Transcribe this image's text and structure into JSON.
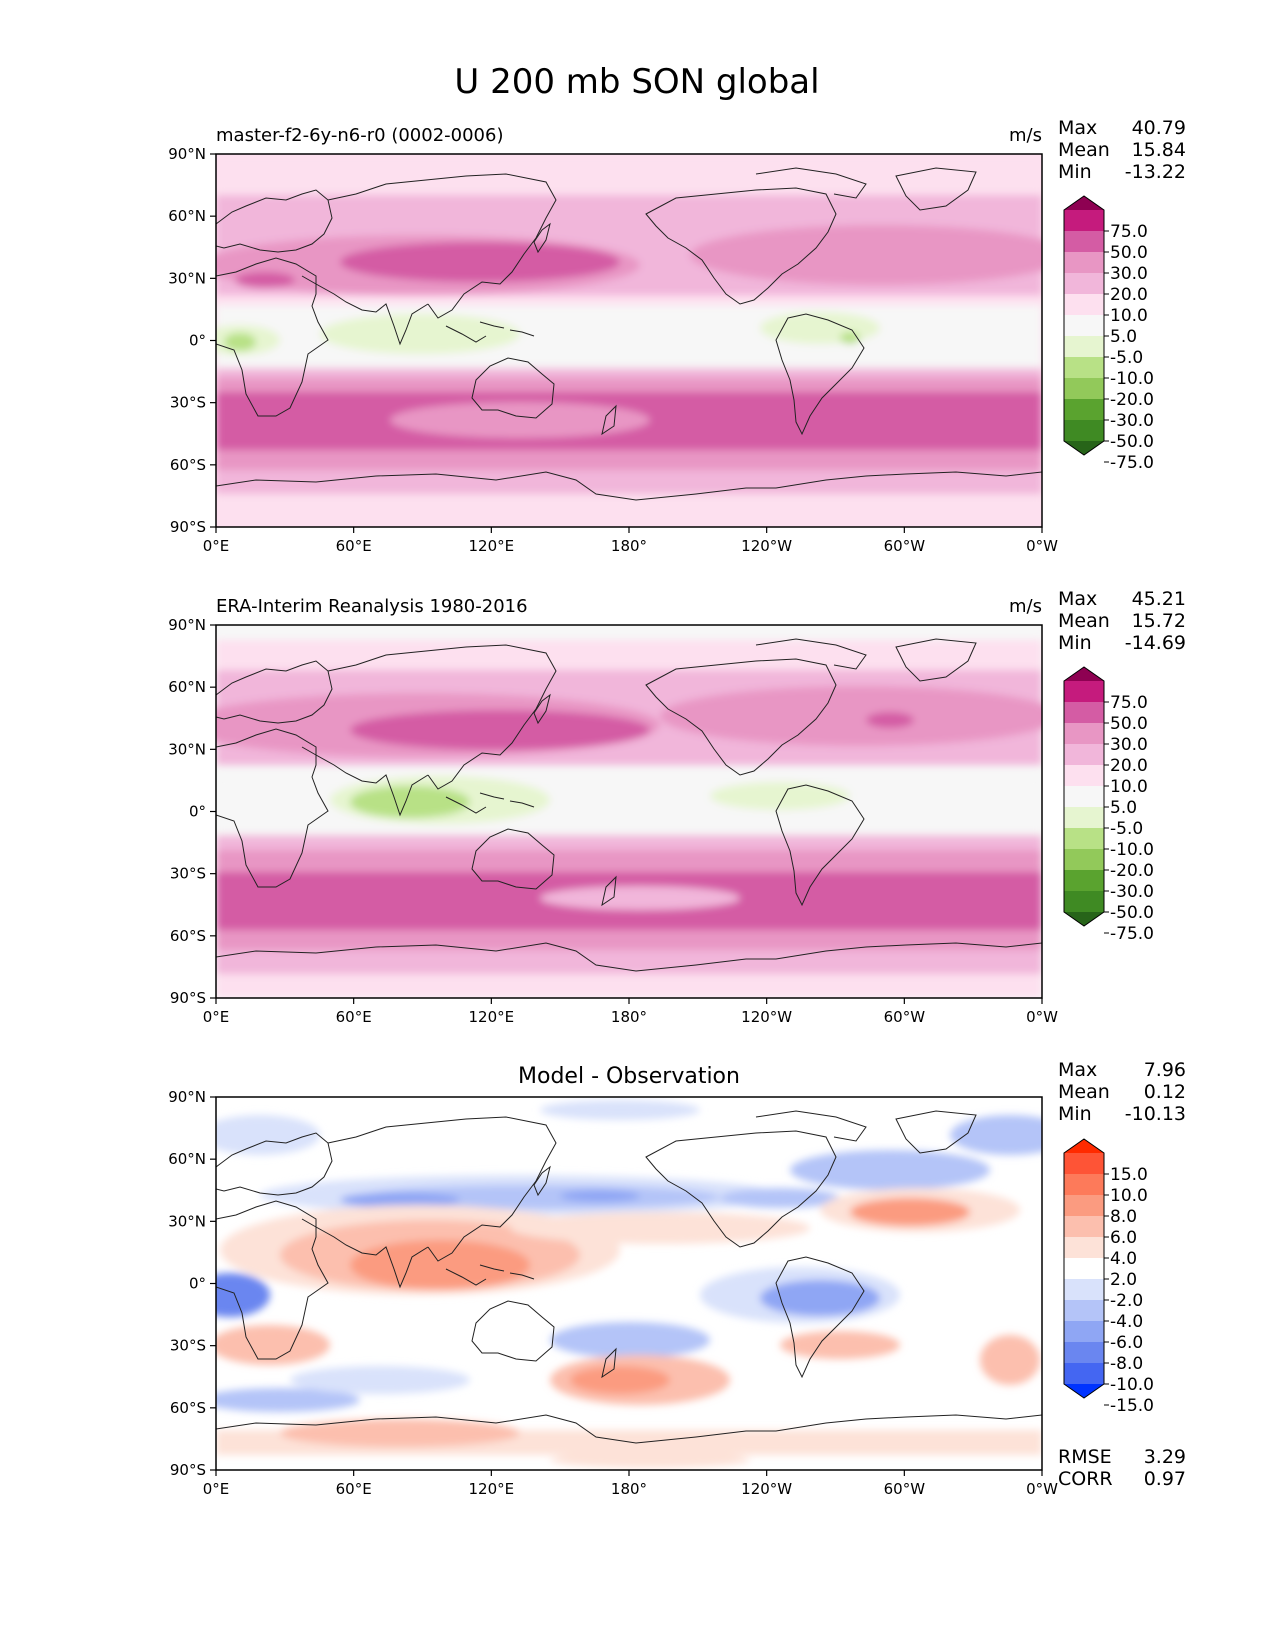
{
  "figure_title": "U 200 mb SON global",
  "chart_data": [
    {
      "type": "heatmap",
      "name": "test",
      "left_title": "master-f2-6y-n6-r0 (0002-0006)",
      "center_title": "",
      "units": "m/s",
      "stats": [
        {
          "label": "Max",
          "value": "40.79"
        },
        {
          "label": "Mean",
          "value": "15.84"
        },
        {
          "label": "Min",
          "value": "-13.22"
        }
      ],
      "colorbar_ticks": [
        "75.0",
        "50.0",
        "30.0",
        "20.0",
        "10.0",
        "5.0",
        "-5.0",
        "-10.0",
        "-20.0",
        "-30.0",
        "-50.0",
        "-75.0"
      ],
      "colorbar_colors": [
        "#8e0152",
        "#c51b7d",
        "#d45ca4",
        "#e896c4",
        "#f1b6da",
        "#fde0ef",
        "#f7f7f7",
        "#e6f5d0",
        "#b8e186",
        "#92c95a",
        "#5aa32f",
        "#3f8a23",
        "#276419"
      ],
      "xticks": [
        "0°E",
        "60°E",
        "120°E",
        "180°",
        "120°W",
        "60°W",
        "0°W"
      ],
      "yticks": [
        "90°N",
        "60°N",
        "30°N",
        "0°",
        "30°S",
        "60°S",
        "90°S"
      ]
    },
    {
      "type": "heatmap",
      "name": "reference",
      "left_title": "ERA-Interim Reanalysis 1980-2016",
      "center_title": "",
      "units": "m/s",
      "stats": [
        {
          "label": "Max",
          "value": "45.21"
        },
        {
          "label": "Mean",
          "value": "15.72"
        },
        {
          "label": "Min",
          "value": "-14.69"
        }
      ],
      "colorbar_ticks": [
        "75.0",
        "50.0",
        "30.0",
        "20.0",
        "10.0",
        "5.0",
        "-5.0",
        "-10.0",
        "-20.0",
        "-30.0",
        "-50.0",
        "-75.0"
      ],
      "colorbar_colors": [
        "#8e0152",
        "#c51b7d",
        "#d45ca4",
        "#e896c4",
        "#f1b6da",
        "#fde0ef",
        "#f7f7f7",
        "#e6f5d0",
        "#b8e186",
        "#92c95a",
        "#5aa32f",
        "#3f8a23",
        "#276419"
      ],
      "xticks": [
        "0°E",
        "60°E",
        "120°E",
        "180°",
        "120°W",
        "60°W",
        "0°W"
      ],
      "yticks": [
        "90°N",
        "60°N",
        "30°N",
        "0°",
        "30°S",
        "60°S",
        "90°S"
      ]
    },
    {
      "type": "heatmap",
      "name": "difference",
      "left_title": "",
      "center_title": "Model - Observation",
      "units": "",
      "stats": [
        {
          "label": "Max",
          "value": "7.96"
        },
        {
          "label": "Mean",
          "value": "0.12"
        },
        {
          "label": "Min",
          "value": "-10.13"
        }
      ],
      "extra_stats": [
        {
          "label": "RMSE",
          "value": "3.29"
        },
        {
          "label": "CORR",
          "value": "0.97"
        }
      ],
      "colorbar_ticks": [
        "15.0",
        "10.0",
        "8.0",
        "6.0",
        "4.0",
        "2.0",
        "-2.0",
        "-4.0",
        "-6.0",
        "-8.0",
        "-10.0",
        "-15.0"
      ],
      "colorbar_colors": [
        "#ff2a00",
        "#fe5436",
        "#fd7a5a",
        "#fb9b80",
        "#fcbfae",
        "#fde2d8",
        "#ffffff",
        "#d9e2fb",
        "#b4c4f8",
        "#8fa6f4",
        "#6a86f0",
        "#4466f2",
        "#0033ff"
      ],
      "xticks": [
        "0°E",
        "60°E",
        "120°E",
        "180°",
        "120°W",
        "60°W",
        "0°W"
      ],
      "yticks": [
        "90°N",
        "60°N",
        "30°N",
        "0°",
        "30°S",
        "60°S",
        "90°S"
      ]
    }
  ]
}
